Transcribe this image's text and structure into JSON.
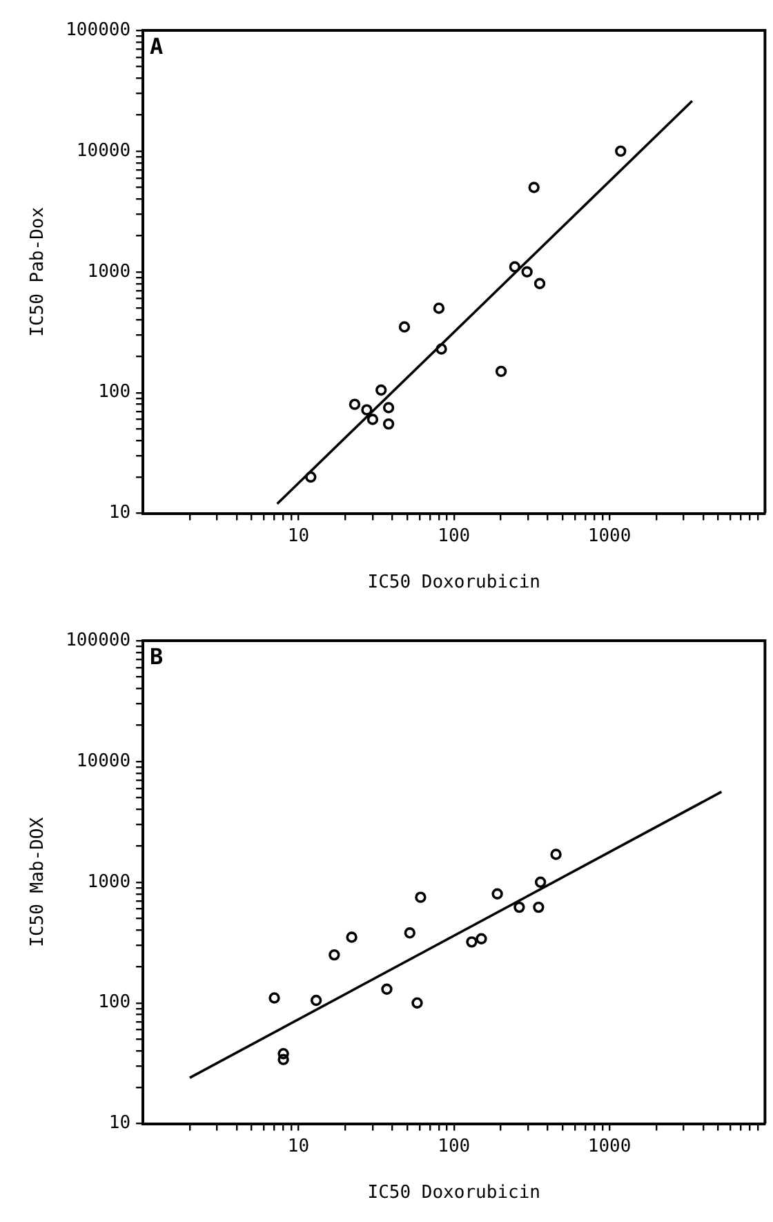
{
  "chart_data": [
    {
      "type": "scatter",
      "xlabel": "IC50 Doxorubicin",
      "ylabel": "IC50 Pab-Dox",
      "annotations": [
        "A"
      ],
      "log": "xy",
      "grid": false,
      "xlim": [
        1,
        10000
      ],
      "ylim": [
        10,
        100000
      ],
      "xticks": [
        {
          "value": 2,
          "label": null
        },
        {
          "value": 3,
          "label": null
        },
        {
          "value": 4,
          "label": null
        },
        {
          "value": 5,
          "label": null
        },
        {
          "value": 6,
          "label": null
        },
        {
          "value": 7,
          "label": null
        },
        {
          "value": 8,
          "label": null
        },
        {
          "value": 9,
          "label": null
        },
        10,
        {
          "value": 20,
          "label": null
        },
        {
          "value": 30,
          "label": null
        },
        {
          "value": 40,
          "label": null
        },
        {
          "value": 50,
          "label": null
        },
        {
          "value": 60,
          "label": null
        },
        {
          "value": 70,
          "label": null
        },
        {
          "value": 80,
          "label": null
        },
        {
          "value": 90,
          "label": null
        },
        100,
        {
          "value": 200,
          "label": null
        },
        {
          "value": 300,
          "label": null
        },
        {
          "value": 400,
          "label": null
        },
        {
          "value": 500,
          "label": null
        },
        {
          "value": 600,
          "label": null
        },
        {
          "value": 700,
          "label": null
        },
        {
          "value": 800,
          "label": null
        },
        {
          "value": 900,
          "label": null
        },
        1000,
        {
          "value": 2000,
          "label": null
        },
        {
          "value": 3000,
          "label": null
        },
        {
          "value": 4000,
          "label": null
        },
        {
          "value": 5000,
          "label": null
        },
        {
          "value": 6000,
          "label": null
        },
        {
          "value": 7000,
          "label": null
        },
        {
          "value": 8000,
          "label": null
        },
        {
          "value": 9000,
          "label": null
        }
      ],
      "yticks": [
        10,
        {
          "value": 20,
          "label": null
        },
        {
          "value": 30,
          "label": null
        },
        {
          "value": 40,
          "label": null
        },
        {
          "value": 50,
          "label": null
        },
        {
          "value": 60,
          "label": null
        },
        {
          "value": 70,
          "label": null
        },
        {
          "value": 80,
          "label": null
        },
        {
          "value": 90,
          "label": null
        },
        100,
        {
          "value": 200,
          "label": null
        },
        {
          "value": 300,
          "label": null
        },
        {
          "value": 400,
          "label": null
        },
        {
          "value": 500,
          "label": null
        },
        {
          "value": 600,
          "label": null
        },
        {
          "value": 700,
          "label": null
        },
        {
          "value": 800,
          "label": null
        },
        {
          "value": 900,
          "label": null
        },
        1000,
        {
          "value": 2000,
          "label": null
        },
        {
          "value": 3000,
          "label": null
        },
        {
          "value": 4000,
          "label": null
        },
        {
          "value": 5000,
          "label": null
        },
        {
          "value": 6000,
          "label": null
        },
        {
          "value": 7000,
          "label": null
        },
        {
          "value": 8000,
          "label": null
        },
        {
          "value": 9000,
          "label": null
        },
        10000,
        {
          "value": 20000,
          "label": null
        },
        {
          "value": 30000,
          "label": null
        },
        {
          "value": 40000,
          "label": null
        },
        {
          "value": 50000,
          "label": null
        },
        {
          "value": 60000,
          "label": null
        },
        {
          "value": 70000,
          "label": null
        },
        {
          "value": 80000,
          "label": null
        },
        {
          "value": 90000,
          "label": null
        },
        100000
      ],
      "series": [
        {
          "marker": "circle",
          "color": "#000000",
          "x": [
            1180,
            327,
            246,
            295,
            356,
            80,
            48,
            83,
            201,
            34,
            23,
            27.5,
            30,
            38,
            38,
            12
          ],
          "values": [
            10000,
            5000,
            1100,
            1000,
            800,
            500,
            350,
            230,
            150,
            105,
            80,
            72,
            60,
            75,
            55,
            20
          ]
        },
        {
          "type": "line",
          "marker": "none",
          "color": "#000000",
          "x": [
            7.3,
            3400
          ],
          "values": [
            12,
            26000
          ]
        }
      ]
    },
    {
      "type": "scatter",
      "xlabel": "IC50 Doxorubicin",
      "ylabel": "IC50 Mab-DOX",
      "annotations": [
        "B"
      ],
      "log": "xy",
      "grid": false,
      "xlim": [
        1,
        10000
      ],
      "ylim": [
        10,
        100000
      ],
      "xticks": [
        {
          "value": 2,
          "label": null
        },
        {
          "value": 3,
          "label": null
        },
        {
          "value": 4,
          "label": null
        },
        {
          "value": 5,
          "label": null
        },
        {
          "value": 6,
          "label": null
        },
        {
          "value": 7,
          "label": null
        },
        {
          "value": 8,
          "label": null
        },
        {
          "value": 9,
          "label": null
        },
        10,
        {
          "value": 20,
          "label": null
        },
        {
          "value": 30,
          "label": null
        },
        {
          "value": 40,
          "label": null
        },
        {
          "value": 50,
          "label": null
        },
        {
          "value": 60,
          "label": null
        },
        {
          "value": 70,
          "label": null
        },
        {
          "value": 80,
          "label": null
        },
        {
          "value": 90,
          "label": null
        },
        100,
        {
          "value": 200,
          "label": null
        },
        {
          "value": 300,
          "label": null
        },
        {
          "value": 400,
          "label": null
        },
        {
          "value": 500,
          "label": null
        },
        {
          "value": 600,
          "label": null
        },
        {
          "value": 700,
          "label": null
        },
        {
          "value": 800,
          "label": null
        },
        {
          "value": 900,
          "label": null
        },
        1000,
        {
          "value": 2000,
          "label": null
        },
        {
          "value": 3000,
          "label": null
        },
        {
          "value": 4000,
          "label": null
        },
        {
          "value": 5000,
          "label": null
        },
        {
          "value": 6000,
          "label": null
        },
        {
          "value": 7000,
          "label": null
        },
        {
          "value": 8000,
          "label": null
        },
        {
          "value": 9000,
          "label": null
        }
      ],
      "yticks": [
        10,
        {
          "value": 20,
          "label": null
        },
        {
          "value": 30,
          "label": null
        },
        {
          "value": 40,
          "label": null
        },
        {
          "value": 50,
          "label": null
        },
        {
          "value": 60,
          "label": null
        },
        {
          "value": 70,
          "label": null
        },
        {
          "value": 80,
          "label": null
        },
        {
          "value": 90,
          "label": null
        },
        100,
        {
          "value": 200,
          "label": null
        },
        {
          "value": 300,
          "label": null
        },
        {
          "value": 400,
          "label": null
        },
        {
          "value": 500,
          "label": null
        },
        {
          "value": 600,
          "label": null
        },
        {
          "value": 700,
          "label": null
        },
        {
          "value": 800,
          "label": null
        },
        {
          "value": 900,
          "label": null
        },
        1000,
        {
          "value": 2000,
          "label": null
        },
        {
          "value": 3000,
          "label": null
        },
        {
          "value": 4000,
          "label": null
        },
        {
          "value": 5000,
          "label": null
        },
        {
          "value": 6000,
          "label": null
        },
        {
          "value": 7000,
          "label": null
        },
        {
          "value": 8000,
          "label": null
        },
        {
          "value": 9000,
          "label": null
        },
        10000,
        {
          "value": 20000,
          "label": null
        },
        {
          "value": 30000,
          "label": null
        },
        {
          "value": 40000,
          "label": null
        },
        {
          "value": 50000,
          "label": null
        },
        {
          "value": 60000,
          "label": null
        },
        {
          "value": 70000,
          "label": null
        },
        {
          "value": 80000,
          "label": null
        },
        {
          "value": 90000,
          "label": null
        },
        100000
      ],
      "series": [
        {
          "marker": "circle",
          "color": "#000000",
          "x": [
            453,
            360,
            190,
            263,
            350,
            61,
            52,
            130,
            150,
            22,
            17,
            7,
            13,
            37,
            58,
            8,
            8
          ],
          "values": [
            1700,
            1000,
            800,
            620,
            620,
            750,
            380,
            320,
            340,
            350,
            250,
            110,
            105,
            130,
            100,
            38,
            34
          ]
        },
        {
          "type": "line",
          "marker": "none",
          "color": "#000000",
          "x": [
            2,
            5250
          ],
          "values": [
            24,
            5600
          ]
        }
      ]
    }
  ]
}
